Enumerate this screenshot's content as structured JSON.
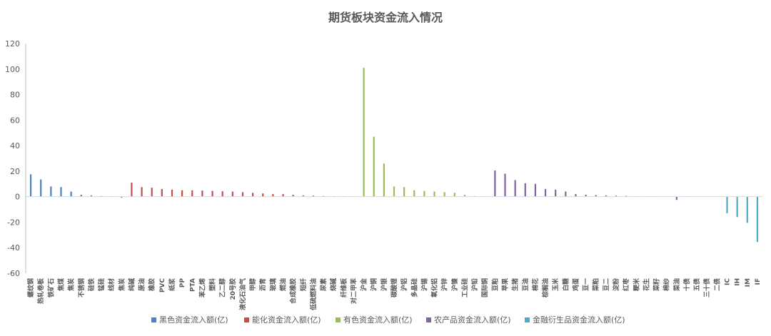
{
  "chart_data": {
    "type": "bar",
    "title": "期货板块资金流入情况",
    "xlabel": "",
    "ylabel": "",
    "ylim": [
      -60,
      120
    ],
    "yticks": [
      120,
      100,
      80,
      60,
      40,
      20,
      0,
      -20,
      -40,
      -60
    ],
    "grid": false,
    "legend_position": "bottom",
    "series": [
      {
        "name": "黑色资金流入额(亿)",
        "color": "#4f81bd",
        "categories": [
          "螺纹钢",
          "热轧卷板",
          "铁矿石",
          "焦煤",
          "焦炭",
          "不锈钢",
          "硅铁",
          "锰硅",
          "线材",
          "焦炭"
        ],
        "values": [
          17.5,
          13.5,
          8,
          7.5,
          4,
          1.5,
          1,
          0.5,
          0.3,
          -0.8
        ]
      },
      {
        "name": "能化资金流入额(亿)",
        "color": "#c0504d",
        "categories": [
          "纯碱",
          "原油",
          "橡胶",
          "PVC",
          "纸浆",
          "PP",
          "PTA",
          "苯乙烯",
          "塑料",
          "乙二醇",
          "20号胶",
          "液化石油气",
          "甲醇",
          "沥青",
          "玻璃",
          "燃油",
          "合成橡胶",
          "短纤",
          "低硫燃料油",
          "尿素",
          "烧碱",
          "纤维板",
          "对二甲苯"
        ],
        "values": [
          11,
          7.5,
          7,
          6,
          5.5,
          5,
          5,
          4.8,
          4.5,
          4.2,
          4,
          3.5,
          3,
          2.5,
          2,
          2,
          1.5,
          1,
          0.8,
          0.5,
          0.4,
          0.3,
          0.2
        ]
      },
      {
        "name": "有色资金流入额(亿)",
        "color": "#9bbb59",
        "categories": [
          "沪金",
          "沪铜",
          "沪银",
          "碳酸锂",
          "沪铝",
          "多晶硅",
          "沪锡",
          "氧化铝",
          "沪锌",
          "沪镍",
          "工业硅",
          "沪铅",
          "国际铜"
        ],
        "values": [
          101,
          47,
          26,
          8,
          7.5,
          5,
          4.5,
          4,
          3.5,
          3,
          1.5,
          0.5,
          0.3
        ]
      },
      {
        "name": "农产品资金流入额(亿)",
        "color": "#8064a2",
        "categories": [
          "豆粕",
          "苹果",
          "生猪",
          "豆油",
          "棉花",
          "棕榈油",
          "玉米",
          "白糖",
          "鸡蛋",
          "豆一",
          "菜粕",
          "豆二",
          "淀粉",
          "红枣",
          "粳米",
          "花生",
          "菜籽",
          "棉纱",
          "菜油"
        ],
        "values": [
          20.5,
          18,
          13,
          10.5,
          10,
          6,
          5.5,
          4,
          2,
          1.5,
          1.2,
          1,
          0.8,
          0.6,
          0.3,
          0.2,
          0.2,
          0.1,
          -2.5
        ]
      },
      {
        "name": "金融衍生品资金流入额(亿)",
        "color": "#4bacc6",
        "categories": [
          "十债",
          "五债",
          "三十债",
          "二债",
          "IC",
          "IH",
          "IM",
          "IF"
        ],
        "values": [
          0.3,
          0.2,
          0.1,
          0.1,
          -13,
          -16,
          -20.5,
          -35.5
        ]
      }
    ]
  }
}
